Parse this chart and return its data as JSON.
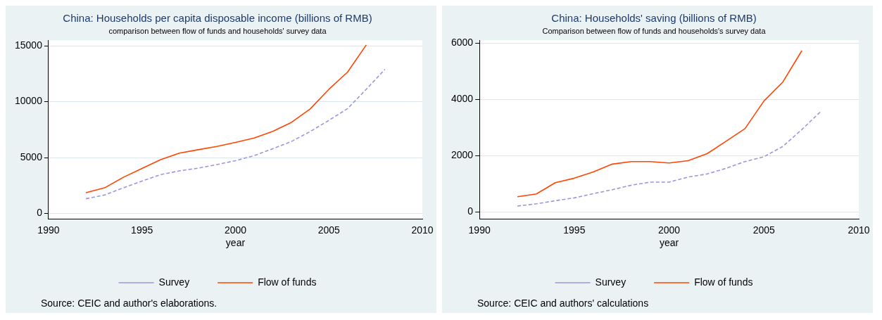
{
  "chart_data": [
    {
      "type": "line",
      "title": "China: Households per capita disposable income (billions of RMB)",
      "subtitle": "comparison between flow of funds and households' survey data",
      "xlabel": "year",
      "x": [
        1992,
        1993,
        1994,
        1995,
        1996,
        1997,
        1998,
        1999,
        2000,
        2001,
        2002,
        2003,
        2004,
        2005,
        2006,
        2007,
        2008
      ],
      "series": [
        {
          "name": "Survey",
          "color": "#9c94dc",
          "line_style": "dashed",
          "values": [
            1310,
            1650,
            2290,
            2900,
            3470,
            3810,
            4050,
            4370,
            4720,
            5170,
            5790,
            6440,
            7330,
            8330,
            9380,
            11110,
            12900
          ]
        },
        {
          "name": "Flow of funds",
          "color": "#ff4500",
          "line_style": "solid",
          "x": [
            1992,
            1993,
            1994,
            1995,
            1996,
            1997,
            1998,
            1999,
            2000,
            2001,
            2002,
            2003,
            2004,
            2005,
            2006,
            2007
          ],
          "values": [
            1850,
            2290,
            3230,
            4030,
            4810,
            5390,
            5700,
            5990,
            6350,
            6750,
            7350,
            8150,
            9350,
            11110,
            12650,
            15080
          ]
        }
      ],
      "xlim": [
        1990,
        2010
      ],
      "xticks": [
        1990,
        1995,
        2000,
        2005,
        2010
      ],
      "ylim": [
        -500,
        15500
      ],
      "yticks": [
        0,
        5000,
        10000,
        15000
      ],
      "grid": "y",
      "legend": "bottom",
      "annotations": [
        "Source: CEIC and author's elaborations."
      ]
    },
    {
      "type": "line",
      "title": "China: Households' saving (billions of RMB)",
      "subtitle": "Comparison between flow of funds and households's survey data",
      "xlabel": "year",
      "x": [
        1992,
        1993,
        1994,
        1995,
        1996,
        1997,
        1998,
        1999,
        2000,
        2001,
        2002,
        2003,
        2004,
        2005,
        2006,
        2007,
        2008
      ],
      "series": [
        {
          "name": "Survey",
          "color": "#9c94dc",
          "line_style": "dashed",
          "values": [
            210,
            290,
            400,
            500,
            650,
            790,
            950,
            1060,
            1060,
            1240,
            1350,
            1550,
            1790,
            1960,
            2330,
            2930,
            3570
          ]
        },
        {
          "name": "Flow of funds",
          "color": "#ff4500",
          "line_style": "solid",
          "x": [
            1992,
            1993,
            1994,
            1995,
            1996,
            1997,
            1998,
            1999,
            2000,
            2001,
            2002,
            2003,
            2004,
            2005,
            2006,
            2007
          ],
          "values": [
            540,
            640,
            1040,
            1200,
            1420,
            1700,
            1790,
            1790,
            1740,
            1820,
            2070,
            2510,
            2960,
            3940,
            4620,
            5730
          ]
        }
      ],
      "xlim": [
        1990,
        2010
      ],
      "xticks": [
        1990,
        1995,
        2000,
        2005,
        2010
      ],
      "ylim": [
        -250,
        6100
      ],
      "yticks": [
        0,
        2000,
        4000,
        6000
      ],
      "grid": "y",
      "legend": "bottom",
      "annotations": [
        "Source: CEIC and authors' calculations"
      ]
    }
  ]
}
